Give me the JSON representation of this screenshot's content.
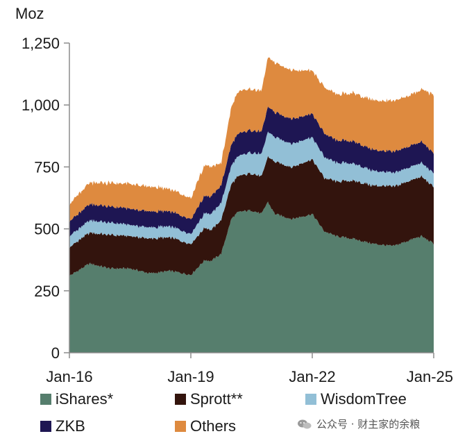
{
  "chart_data": {
    "type": "area",
    "stacked": true,
    "unit": "Moz",
    "ylim": [
      0,
      1250
    ],
    "yticks": [
      0,
      250,
      500,
      750,
      1000,
      1250
    ],
    "ytick_labels": [
      "0",
      "250",
      "500",
      "750",
      "1,000",
      "1,250"
    ],
    "x_range": [
      2016.0,
      2025.0
    ],
    "xticks": [
      2016.0,
      2019.0,
      2022.0,
      2025.0
    ],
    "xtick_labels": [
      "Jan-16",
      "Jan-19",
      "Jan-22",
      "Jan-25"
    ],
    "grid": false,
    "legend_position": "bottom",
    "x": [
      2016.0,
      2016.5,
      2017.0,
      2017.5,
      2018.0,
      2018.5,
      2019.0,
      2019.35,
      2019.5,
      2019.75,
      2020.0,
      2020.15,
      2020.25,
      2020.5,
      2020.75,
      2020.9,
      2021.0,
      2021.08,
      2021.5,
      2022.0,
      2022.3,
      2022.6,
      2023.0,
      2023.5,
      2024.0,
      2024.5,
      2024.7,
      2025.0
    ],
    "series": [
      {
        "name": "iShares*",
        "color": "#567e6d",
        "values": [
          310,
          360,
          340,
          340,
          320,
          330,
          315,
          375,
          370,
          400,
          540,
          565,
          570,
          575,
          560,
          610,
          580,
          560,
          540,
          560,
          490,
          470,
          460,
          440,
          430,
          460,
          470,
          440
        ]
      },
      {
        "name": "Sprott**",
        "color": "#33140d",
        "values": [
          115,
          125,
          135,
          130,
          140,
          135,
          125,
          130,
          125,
          135,
          140,
          145,
          145,
          150,
          150,
          180,
          200,
          210,
          210,
          220,
          215,
          220,
          235,
          235,
          240,
          240,
          240,
          230
        ]
      },
      {
        "name": "WisdomTree",
        "color": "#92bfd6",
        "values": [
          45,
          50,
          50,
          45,
          45,
          45,
          40,
          60,
          65,
          70,
          75,
          80,
          82,
          85,
          90,
          100,
          100,
          100,
          95,
          90,
          85,
          75,
          70,
          60,
          55,
          55,
          55,
          55
        ]
      },
      {
        "name": "ZKB",
        "color": "#1e1653",
        "values": [
          60,
          65,
          65,
          65,
          65,
          60,
          60,
          70,
          70,
          70,
          85,
          90,
          90,
          90,
          90,
          100,
          100,
          100,
          100,
          95,
          95,
          90,
          90,
          85,
          85,
          85,
          85,
          80
        ]
      },
      {
        "name": "Others",
        "color": "#de8a3f",
        "values": [
          70,
          85,
          95,
          100,
          100,
          90,
          85,
          125,
          120,
          90,
          150,
          170,
          170,
          165,
          165,
          200,
          200,
          200,
          195,
          175,
          185,
          185,
          195,
          200,
          205,
          205,
          210,
          235
        ]
      }
    ]
  },
  "watermark": {
    "text": "公众号 · 财主家的余粮"
  }
}
